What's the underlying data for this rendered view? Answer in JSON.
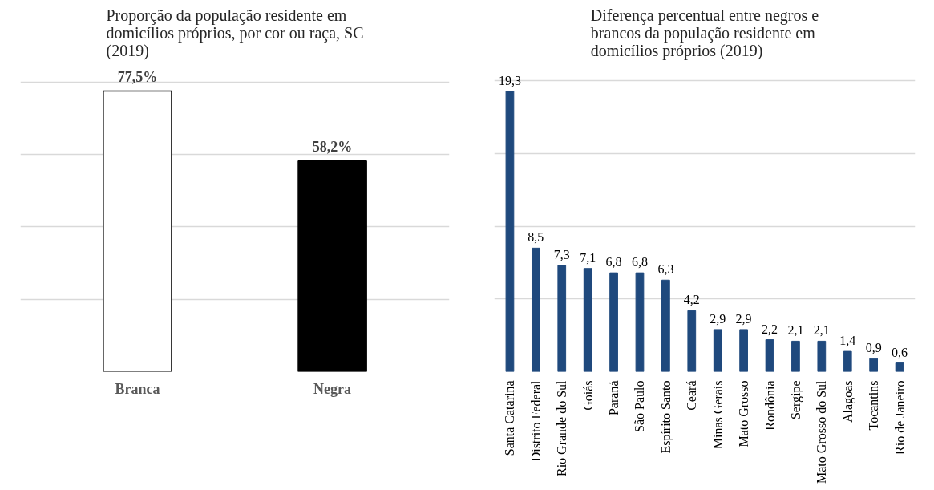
{
  "chart_data": [
    {
      "type": "bar",
      "title": "Proporção da população residente em domicílios próprios, por cor ou raça, SC (2019)",
      "categories": [
        "Branca",
        "Negra"
      ],
      "values": [
        77.5,
        58.2
      ],
      "colors": [
        "#ffffff",
        "#000000"
      ],
      "value_labels": [
        "77,5%",
        "58,2%"
      ],
      "grid": "y",
      "tick_labels": "x"
    },
    {
      "type": "bar",
      "title": "Diferença percentual entre negros e brancos da população residente em domicílios próprios (2019)",
      "categories": [
        "Santa Catarina",
        "Distrito Federal",
        "Rio Grande do Sul",
        "Goiás",
        "Paraná",
        "São Paulo",
        "Espírito Santo",
        "Ceará",
        "Minas Gerais",
        "Mato Grosso",
        "Rondônia",
        "Sergipe",
        "Mato Grosso do Sul",
        "Alagoas",
        "Tocantins",
        "Rio de Janeiro"
      ],
      "values": [
        19.3,
        8.5,
        7.3,
        7.1,
        6.8,
        6.8,
        6.3,
        4.2,
        2.9,
        2.9,
        2.2,
        2.1,
        2.1,
        1.4,
        0.9,
        0.6
      ],
      "color": "#1f497d",
      "value_labels": [
        "19,3",
        "8,5",
        "7,3",
        "7,1",
        "6,8",
        "6,8",
        "6,3",
        "4,2",
        "2,9",
        "2,9",
        "2,2",
        "2,1",
        "2,1",
        "1,4",
        "0,9",
        "0,6"
      ],
      "grid": "y",
      "tick_labels": "x"
    }
  ]
}
